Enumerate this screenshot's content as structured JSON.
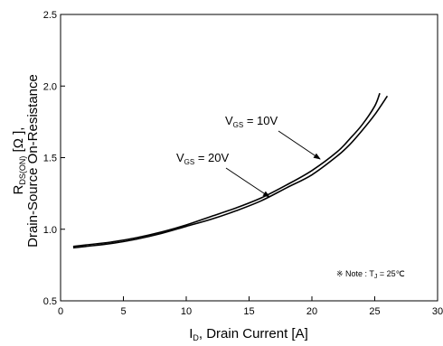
{
  "chart_data": {
    "type": "line",
    "xlabel": {
      "prefix": "I",
      "sub": "D",
      "rest": ", Drain Current [A]"
    },
    "ylabel": {
      "line1": {
        "prefix": "R",
        "sub": "DS(ON)",
        "rest": " [Ω ],"
      },
      "line2": "Drain-Source On-Resistance"
    },
    "xlim": [
      0,
      30
    ],
    "ylim": [
      0.5,
      2.5
    ],
    "xticks": [
      "0",
      "5",
      "10",
      "15",
      "20",
      "25",
      "30"
    ],
    "yticks": [
      "0.5",
      "1.0",
      "1.5",
      "2.0",
      "2.5"
    ],
    "grid": false,
    "note": {
      "prefix": "※ Note : T",
      "sub": "J",
      "rest": " = 25℃"
    },
    "series": [
      {
        "name": "VGS = 20V",
        "label": {
          "prefix": "V",
          "sub": "GS",
          "rest": " = 20V"
        },
        "x": [
          1,
          2,
          4,
          6,
          8,
          10,
          12,
          14,
          16,
          18,
          20,
          22,
          23,
          24,
          25,
          26
        ],
        "y": [
          0.87,
          0.88,
          0.9,
          0.93,
          0.97,
          1.02,
          1.07,
          1.13,
          1.2,
          1.29,
          1.38,
          1.51,
          1.59,
          1.69,
          1.8,
          1.93
        ]
      },
      {
        "name": "VGS = 10V",
        "label": {
          "prefix": "V",
          "sub": "GS",
          "rest": " = 10V"
        },
        "x": [
          1,
          2,
          4,
          6,
          8,
          10,
          12,
          14,
          16,
          18,
          20,
          22,
          23,
          24,
          25,
          25.4
        ],
        "y": [
          0.88,
          0.89,
          0.91,
          0.94,
          0.98,
          1.03,
          1.09,
          1.15,
          1.22,
          1.31,
          1.41,
          1.54,
          1.63,
          1.73,
          1.86,
          1.95
        ]
      }
    ]
  }
}
